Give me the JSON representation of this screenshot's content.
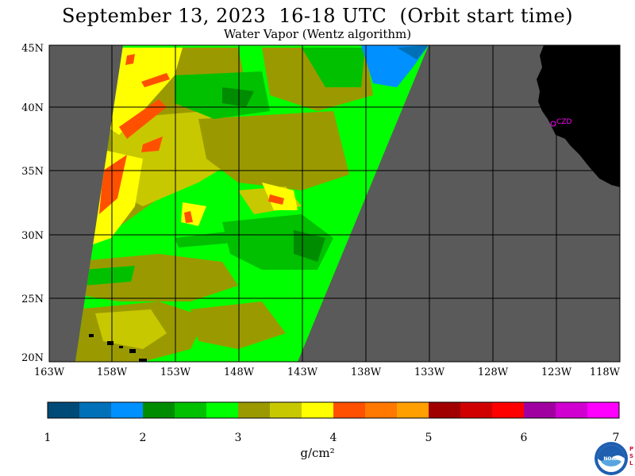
{
  "header": {
    "title": "September 13, 2023  16-18 UTC  (Orbit start time)",
    "subtitle": "Water Vapor (Wentz algorithm)"
  },
  "map": {
    "lat_labels": [
      "45N",
      "40N",
      "35N",
      "30N",
      "25N",
      "20N"
    ],
    "lon_labels": [
      "163W",
      "158W",
      "153W",
      "148W",
      "143W",
      "138W",
      "133W",
      "128W",
      "123W",
      "118W"
    ],
    "station_label": "CZD",
    "colors": {
      "no_data": "#5a5a5a",
      "land": "#000000",
      "grid": "#000000",
      "station": "#ff00ff"
    }
  },
  "colorbar": {
    "tick_labels": [
      "1",
      "2",
      "3",
      "4",
      "5",
      "6",
      "7"
    ],
    "unit": "g/cm²",
    "colors": [
      "#004a78",
      "#0070b8",
      "#0090ff",
      "#008c00",
      "#00c000",
      "#00ff00",
      "#9a9a00",
      "#c8c800",
      "#ffff00",
      "#ff5000",
      "#ff7800",
      "#ffa000",
      "#a00000",
      "#d00000",
      "#ff0000",
      "#a000a0",
      "#d000d0",
      "#ff00ff"
    ]
  },
  "logo": {
    "text": "NOAA",
    "side_text": "PSL"
  }
}
